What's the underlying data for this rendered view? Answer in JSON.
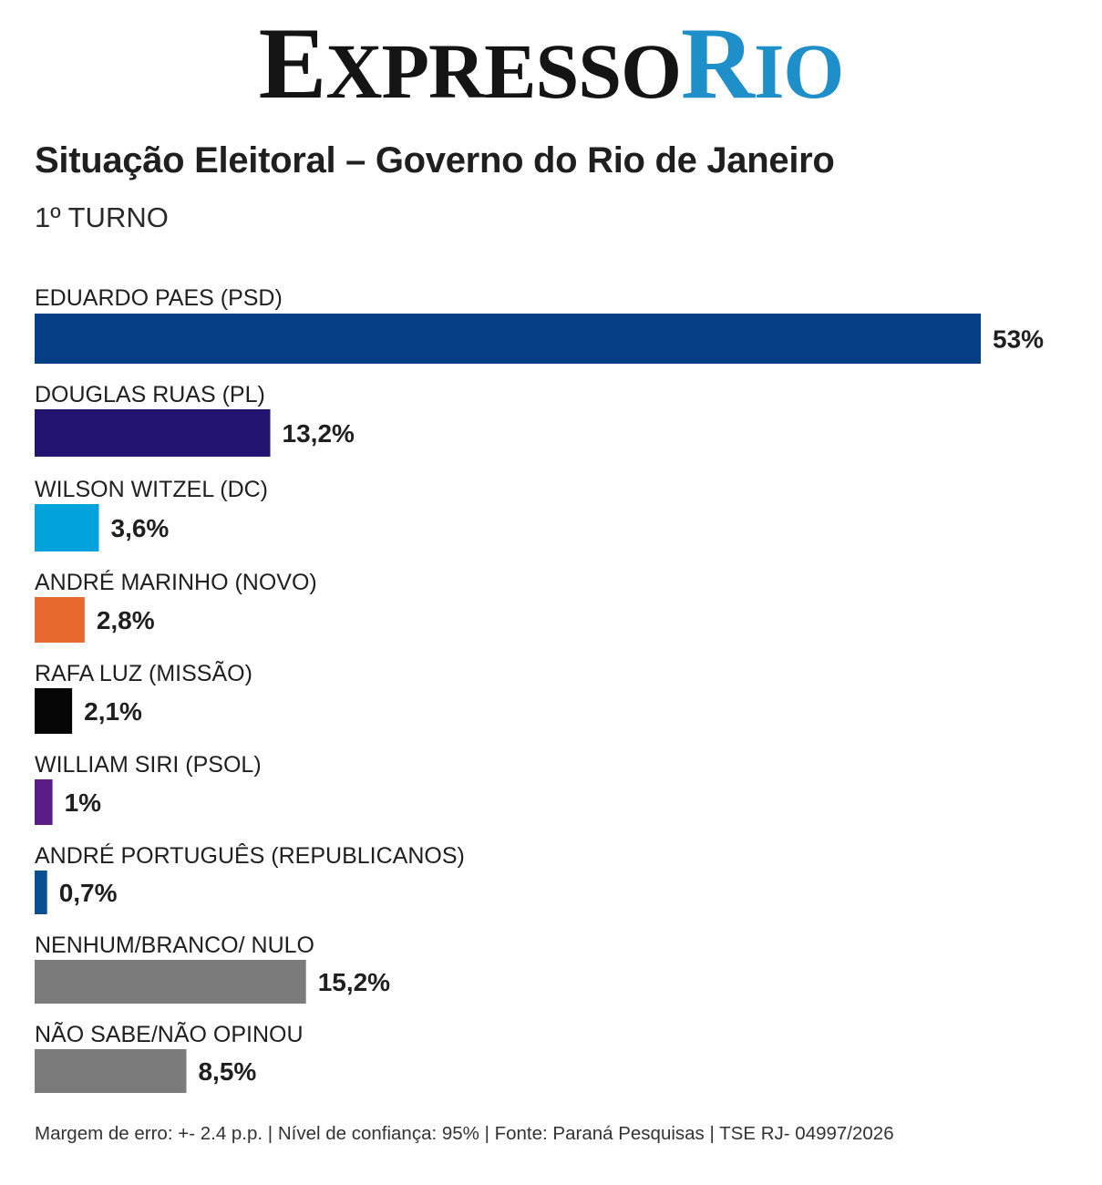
{
  "logo": {
    "first_initial": "E",
    "first_rest": "XPRESSO",
    "second_initial": "R",
    "second_rest": "IO",
    "color_dark": "#141414",
    "color_blue": "#1e8fc9"
  },
  "title": "Situação Eleitoral – Governo do Rio de Janeiro",
  "subtitle": "1º TURNO",
  "chart_data": {
    "type": "bar",
    "orientation": "horizontal",
    "title": "Situação Eleitoral – Governo do Rio de Janeiro",
    "subtitle": "1º TURNO",
    "xlabel": "",
    "ylabel": "",
    "xlim": [
      0,
      53
    ],
    "grid": false,
    "legend": "none",
    "categories": [
      "EDUARDO PAES (PSD)",
      "DOUGLAS RUAS (PL)",
      "WILSON WITZEL (DC)",
      "ANDRÉ MARINHO (NOVO)",
      "RAFA LUZ (MISSÃO)",
      "WILLIAM SIRI (PSOL)",
      "ANDRÉ PORTUGUÊS (REPUBLICANOS)",
      "NENHUM/BRANCO/ NULO",
      "NÃO SABE/NÃO OPINOU"
    ],
    "values": [
      53,
      13.2,
      3.6,
      2.8,
      2.1,
      1,
      0.7,
      15.2,
      8.5
    ],
    "value_labels": [
      "53%",
      "13,2%",
      "3,6%",
      "2,8%",
      "2,1%",
      "1%",
      "0,7%",
      "15,2%",
      "8,5%"
    ],
    "colors": [
      "#063f86",
      "#231470",
      "#02a2dd",
      "#e8692d",
      "#050505",
      "#5a1d88",
      "#0b4f93",
      "#7b7b7b",
      "#7b7b7b"
    ]
  },
  "footer": "Margem de erro: +- 2.4 p.p. | Nível de confiança: 95% | Fonte: Paraná Pesquisas | TSE RJ- 04997/2026"
}
